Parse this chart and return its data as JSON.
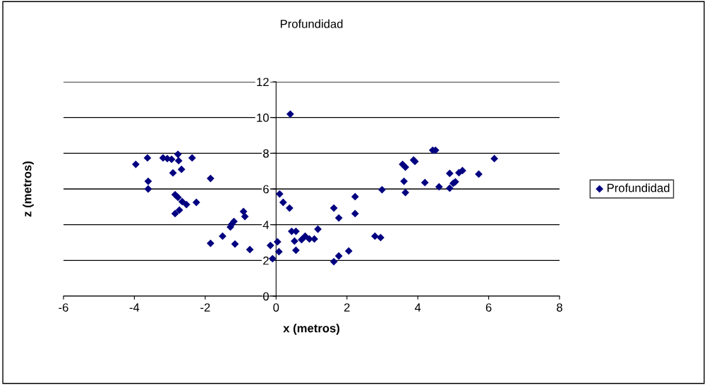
{
  "chart_data": {
    "type": "scatter",
    "title": "Profundidad",
    "xlabel": "x (metros)",
    "ylabel": "z (metros)",
    "series": [
      {
        "name": "Profundidad",
        "color": "#000080",
        "x": [
          -3.96,
          -3.63,
          -3.61,
          -3.61,
          -3.19,
          -3.07,
          -2.95,
          -2.91,
          -2.77,
          -2.75,
          -2.67,
          -2.37,
          -1.85,
          -2.85,
          -2.77,
          -2.65,
          -2.53,
          -2.25,
          -2.85,
          -2.73,
          -1.85,
          -1.51,
          -1.29,
          -1.25,
          -1.19,
          -1.16,
          -0.92,
          -0.88,
          -0.74,
          -0.16,
          -0.1,
          0.04,
          0.08,
          0.1,
          0.2,
          0.38,
          0.4,
          0.44,
          0.56,
          0.52,
          0.56,
          0.72,
          0.82,
          0.94,
          1.08,
          1.18,
          1.63,
          1.77,
          1.63,
          1.77,
          2.05,
          2.23,
          2.23,
          2.79,
          2.95,
          2.99,
          3.57,
          3.65,
          3.61,
          3.65,
          3.88,
          3.92,
          4.42,
          4.5,
          4.2,
          4.6,
          4.9,
          4.9,
          5.0,
          5.06,
          5.16,
          5.26,
          5.72,
          6.16
        ],
        "values": [
          7.38,
          7.74,
          6.43,
          6.0,
          7.74,
          7.7,
          7.66,
          6.9,
          7.94,
          7.58,
          7.1,
          7.74,
          6.59,
          5.68,
          5.53,
          5.29,
          5.13,
          5.25,
          4.62,
          4.82,
          2.96,
          3.36,
          3.87,
          4.03,
          4.18,
          2.92,
          4.74,
          4.46,
          2.61,
          2.84,
          2.1,
          3.04,
          2.49,
          5.72,
          5.25,
          4.93,
          10.19,
          3.63,
          3.63,
          3.08,
          2.57,
          3.16,
          3.36,
          3.2,
          3.2,
          3.75,
          4.93,
          4.38,
          1.93,
          2.25,
          2.53,
          5.57,
          4.62,
          3.36,
          3.28,
          5.96,
          7.38,
          7.22,
          6.43,
          5.8,
          7.62,
          7.54,
          8.17,
          8.17,
          6.36,
          6.12,
          6.87,
          6.04,
          6.32,
          6.4,
          6.91,
          7.03,
          6.83,
          7.7
        ]
      }
    ],
    "xlim": [
      -6,
      8
    ],
    "xticks": [
      -6,
      -4,
      -2,
      0,
      2,
      4,
      6,
      8
    ],
    "ylim": [
      0,
      12
    ],
    "yticks": [
      0,
      2,
      4,
      6,
      8,
      10,
      12
    ],
    "grid": "y",
    "legend": "right",
    "marker": "diamond"
  }
}
